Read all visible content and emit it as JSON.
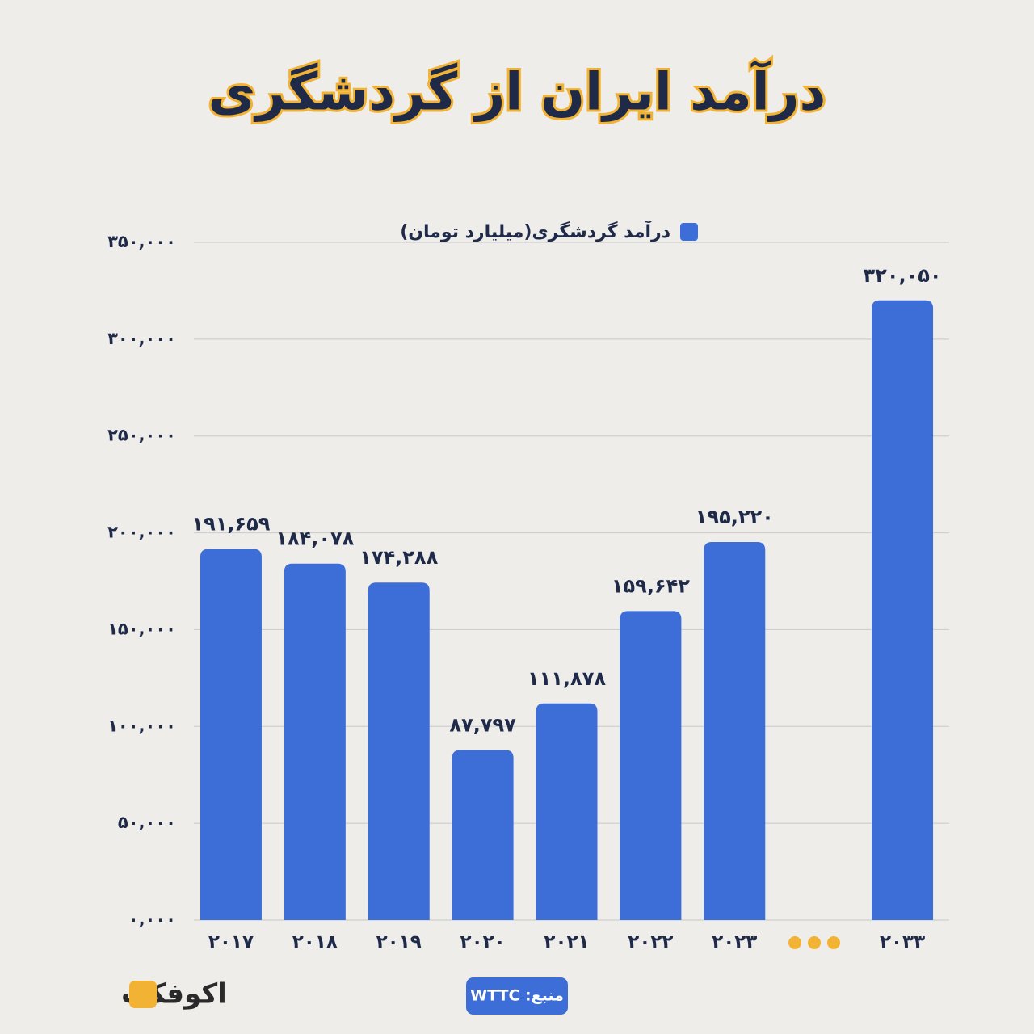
{
  "chart_data": {
    "type": "bar",
    "title": "درآمد ایران از گردشگری",
    "series": [
      {
        "name": "درآمد گردشگری(میلیارد تومان)",
        "color": "#3d6dd6",
        "values": [
          191659,
          184078,
          174288,
          87797,
          111878,
          159642,
          195220,
          null,
          320050
        ],
        "value_labels": [
          "۱۹۱,۶۵۹",
          "۱۸۴,۰۷۸",
          "۱۷۴,۲۸۸",
          "۸۷,۷۹۷",
          "۱۱۱,۸۷۸",
          "۱۵۹,۶۴۲",
          "۱۹۵,۲۲۰",
          null,
          "۳۲۰,۰۵۰"
        ]
      }
    ],
    "categories": [
      "۲۰۱۷",
      "۲۰۱۸",
      "۲۰۱۹",
      "۲۰۲۰",
      "۲۰۲۱",
      "۲۰۲۲",
      "۲۰۲۳",
      null,
      "۲۰۳۳"
    ],
    "ylim": [
      0,
      350000
    ],
    "yticks": [
      {
        "value": 0,
        "label": "۰,۰۰۰"
      },
      {
        "value": 50000,
        "label": "۵۰,۰۰۰"
      },
      {
        "value": 100000,
        "label": "۱۰۰,۰۰۰"
      },
      {
        "value": 150000,
        "label": "۱۵۰,۰۰۰"
      },
      {
        "value": 200000,
        "label": "۲۰۰,۰۰۰"
      },
      {
        "value": 250000,
        "label": "۲۵۰,۰۰۰"
      },
      {
        "value": 300000,
        "label": "۳۰۰,۰۰۰"
      },
      {
        "value": 350000,
        "label": "۳۵۰,۰۰۰"
      }
    ],
    "grid": true,
    "source": "منبع: WTTC",
    "logo": "اکوفکت"
  }
}
